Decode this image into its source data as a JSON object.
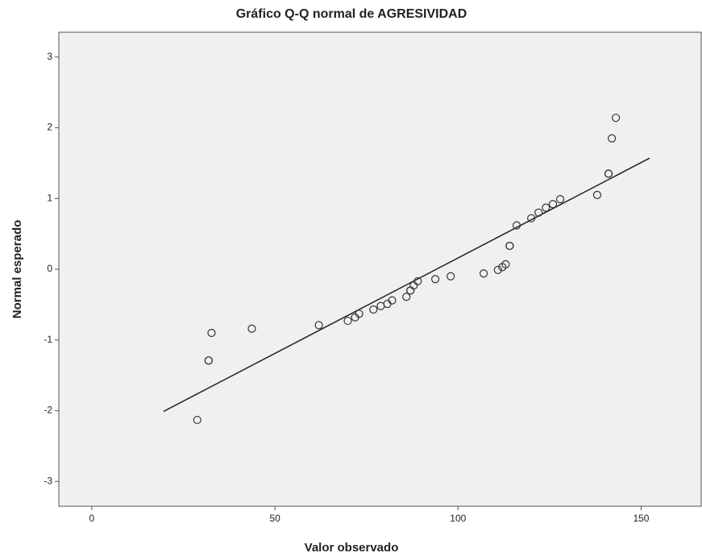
{
  "chart_data": {
    "type": "scatter",
    "title": "Gráfico Q-Q normal de AGRESIVIDAD",
    "x_label": "Valor observado",
    "y_label": "Normal esperado",
    "x": [
      28.8,
      31.9,
      31.9,
      32.7,
      43.7,
      62.0,
      69.9,
      71.9,
      73.0,
      76.9,
      78.9,
      80.7,
      82.0,
      85.9,
      87.0,
      87.0,
      87.9,
      89.0,
      93.8,
      98.0,
      107.0,
      110.9,
      112.1,
      113.0,
      114.1,
      114.1,
      116.0,
      120.0,
      122.0,
      124.0,
      125.9,
      127.9,
      138.0,
      141.1,
      141.1,
      142.0,
      143.1
    ],
    "y": [
      -2.13,
      -1.29,
      -1.29,
      -0.9,
      -0.84,
      -0.79,
      -0.73,
      -0.68,
      -0.63,
      -0.57,
      -0.52,
      -0.49,
      -0.44,
      -0.39,
      -0.3,
      -0.3,
      -0.23,
      -0.17,
      -0.14,
      -0.1,
      -0.06,
      -0.01,
      0.03,
      0.07,
      0.33,
      0.33,
      0.62,
      0.72,
      0.8,
      0.87,
      0.92,
      0.99,
      1.05,
      1.35,
      1.35,
      1.85,
      2.14
    ],
    "reference_line": {
      "x": [
        19.6,
        152.3
      ],
      "y": [
        -2.01,
        1.57
      ]
    },
    "color": "#333333",
    "xlim": [
      -9,
      166.4
    ],
    "ylim": [
      -3.35,
      3.35
    ],
    "xticks": [
      0,
      50,
      100,
      150
    ],
    "yticks": [
      -3,
      -2,
      -1,
      0,
      1,
      2,
      3
    ]
  }
}
